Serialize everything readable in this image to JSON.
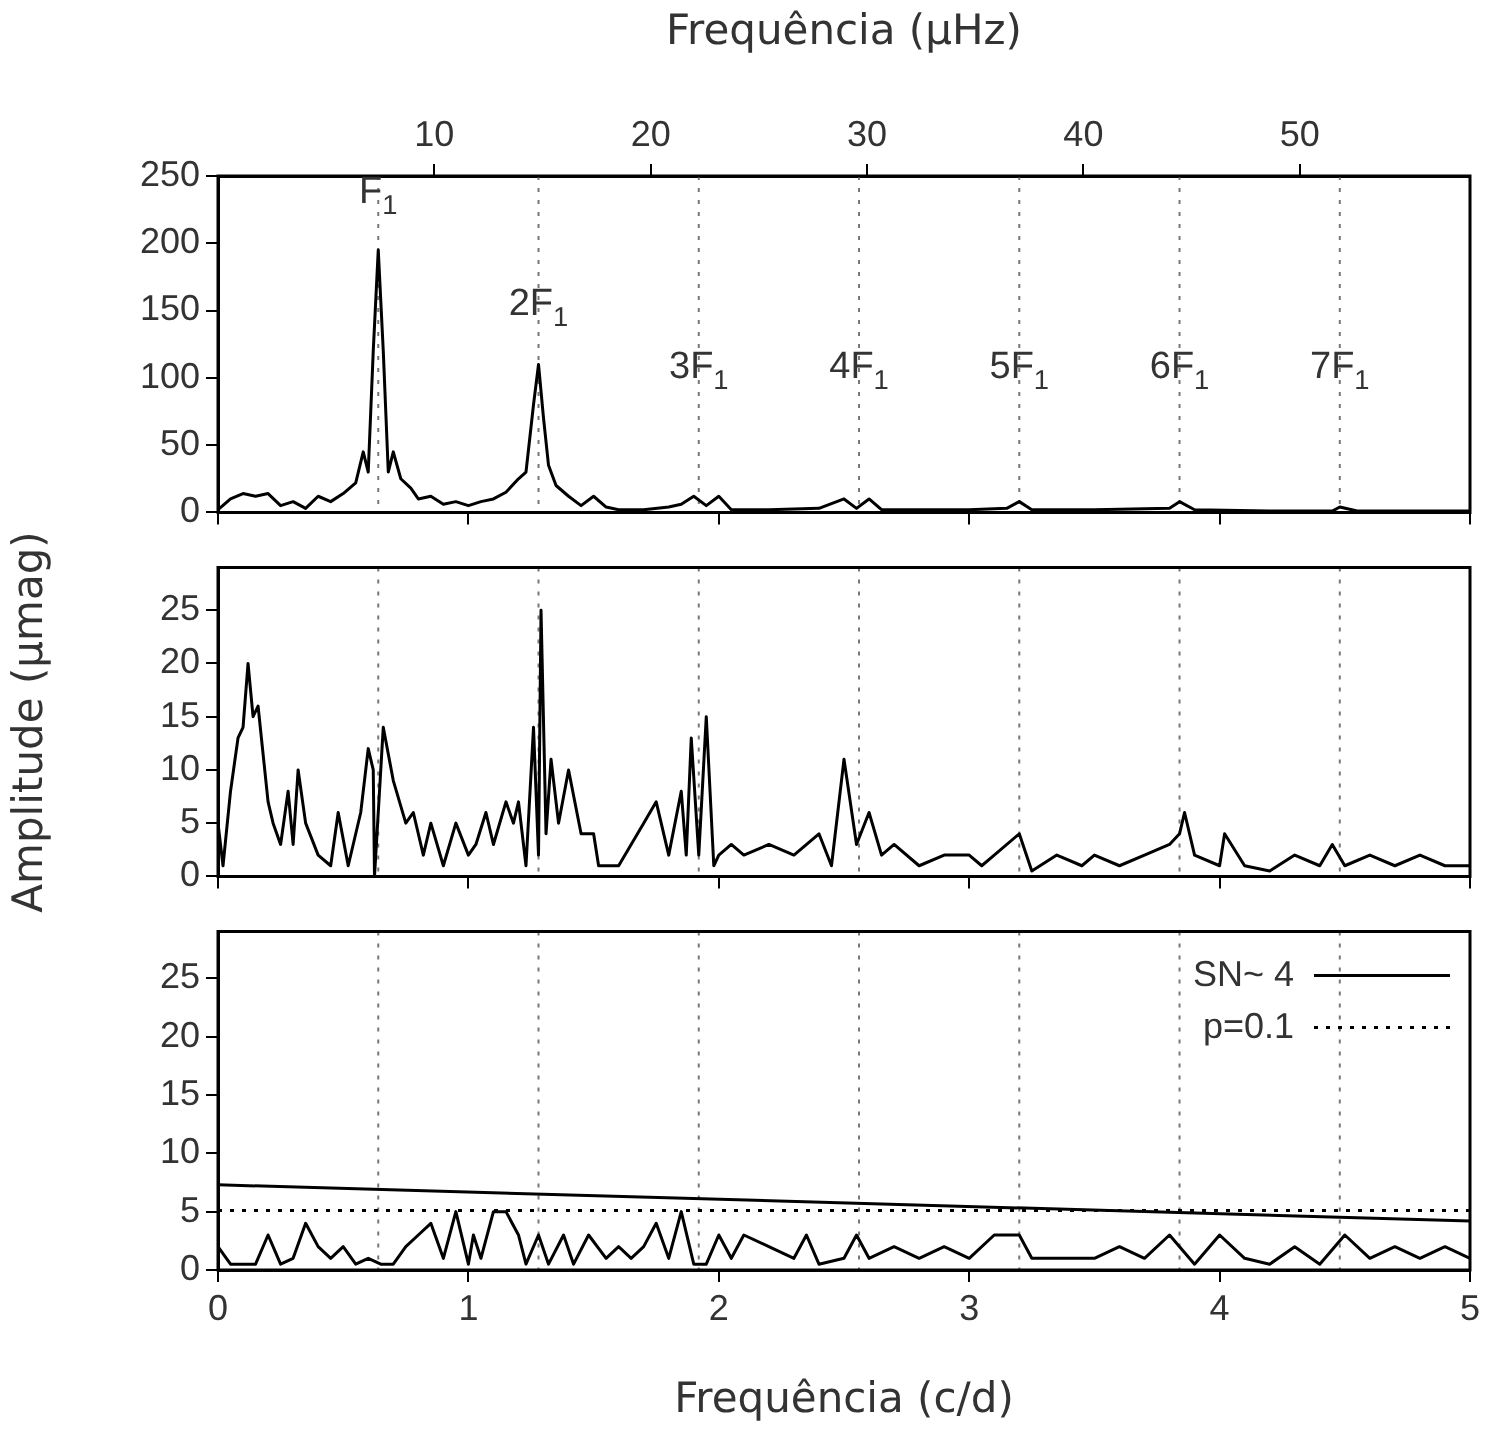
{
  "chart_data": [
    {
      "type": "line",
      "x2label": "Frequência (µHz)",
      "xlim": [
        0,
        5
      ],
      "xticks": [
        0,
        1,
        2,
        3,
        4,
        5
      ],
      "x2lim": [
        0,
        57.87
      ],
      "x2ticks": [
        10,
        20,
        30,
        40,
        50
      ],
      "ylim": [
        0,
        250
      ],
      "yticks": [
        0,
        50,
        100,
        150,
        200,
        250
      ],
      "tick_labels": "y",
      "series": [
        {
          "color": "#000000",
          "x": [
            0,
            0.05,
            0.1,
            0.15,
            0.2,
            0.25,
            0.3,
            0.35,
            0.4,
            0.45,
            0.5,
            0.55,
            0.58,
            0.6,
            0.62,
            0.64,
            0.66,
            0.68,
            0.7,
            0.73,
            0.77,
            0.8,
            0.85,
            0.9,
            0.95,
            1.0,
            1.05,
            1.1,
            1.15,
            1.2,
            1.23,
            1.26,
            1.28,
            1.3,
            1.32,
            1.35,
            1.4,
            1.45,
            1.5,
            1.55,
            1.6,
            1.7,
            1.8,
            1.85,
            1.9,
            1.95,
            2.0,
            2.05,
            2.2,
            2.4,
            2.5,
            2.55,
            2.6,
            2.65,
            2.8,
            3.0,
            3.15,
            3.2,
            3.25,
            3.5,
            3.8,
            3.84,
            3.9,
            4.2,
            4.45,
            4.48,
            4.55,
            5
          ],
          "values": [
            2,
            10,
            14,
            12,
            14,
            5,
            8,
            3,
            12,
            8,
            14,
            22,
            45,
            30,
            120,
            195,
            120,
            30,
            45,
            25,
            18,
            10,
            12,
            6,
            8,
            5,
            8,
            10,
            15,
            25,
            30,
            80,
            110,
            70,
            35,
            20,
            12,
            5,
            12,
            4,
            2,
            2,
            4,
            6,
            12,
            5,
            12,
            2,
            2,
            3,
            10,
            3,
            10,
            2,
            2,
            2,
            3,
            8,
            2,
            2,
            3,
            8,
            2,
            1,
            1,
            4,
            1,
            1
          ]
        }
      ],
      "ref_lines": [
        {
          "axis": "x",
          "value": 0.64
        },
        {
          "axis": "x",
          "value": 1.28
        },
        {
          "axis": "x",
          "value": 1.92
        },
        {
          "axis": "x",
          "value": 2.56
        },
        {
          "axis": "x",
          "value": 3.2
        },
        {
          "axis": "x",
          "value": 3.84
        },
        {
          "axis": "x",
          "value": 4.48
        }
      ],
      "annotations": [
        {
          "text": "F$_{1}$",
          "x": 0.64,
          "y": 230
        },
        {
          "text": "2F$_{1}$",
          "x": 1.28,
          "y": 147
        },
        {
          "text": "3F$_{1}$",
          "x": 1.92,
          "y": 100
        },
        {
          "text": "4F$_{1}$",
          "x": 2.56,
          "y": 100
        },
        {
          "text": "5F$_{1}$",
          "x": 3.2,
          "y": 100
        },
        {
          "text": "6F$_{1}$",
          "x": 3.84,
          "y": 100
        },
        {
          "text": "7F$_{1}$",
          "x": 4.48,
          "y": 100
        }
      ]
    },
    {
      "type": "line",
      "ylabel": "Amplitude (µmag)",
      "xlim": [
        0,
        5
      ],
      "xticks": [
        0,
        1,
        2,
        3,
        4,
        5
      ],
      "ylim": [
        0,
        29
      ],
      "yticks": [
        0,
        5,
        10,
        15,
        20,
        25
      ],
      "tick_labels": "y",
      "series": [
        {
          "color": "#000000",
          "x": [
            0,
            0.02,
            0.05,
            0.08,
            0.1,
            0.12,
            0.14,
            0.16,
            0.2,
            0.22,
            0.25,
            0.28,
            0.3,
            0.32,
            0.35,
            0.4,
            0.45,
            0.48,
            0.52,
            0.57,
            0.6,
            0.62,
            0.625,
            0.66,
            0.7,
            0.75,
            0.78,
            0.82,
            0.85,
            0.9,
            0.95,
            1.0,
            1.03,
            1.07,
            1.1,
            1.15,
            1.18,
            1.2,
            1.23,
            1.26,
            1.28,
            1.29,
            1.31,
            1.33,
            1.36,
            1.4,
            1.45,
            1.5,
            1.52,
            1.6,
            1.7,
            1.75,
            1.8,
            1.85,
            1.87,
            1.89,
            1.92,
            1.95,
            1.98,
            2.0,
            2.05,
            2.1,
            2.2,
            2.3,
            2.4,
            2.45,
            2.5,
            2.55,
            2.6,
            2.65,
            2.7,
            2.8,
            2.9,
            3.0,
            3.05,
            3.1,
            3.2,
            3.25,
            3.35,
            3.45,
            3.5,
            3.6,
            3.7,
            3.8,
            3.84,
            3.86,
            3.9,
            4.0,
            4.02,
            4.1,
            4.2,
            4.3,
            4.4,
            4.45,
            4.5,
            4.6,
            4.7,
            4.8,
            4.9,
            5
          ],
          "values": [
            5,
            1,
            8,
            13,
            14,
            20,
            15,
            16,
            7,
            5,
            3,
            8,
            3,
            10,
            5,
            2,
            1,
            6,
            1,
            6,
            12,
            10,
            0,
            14,
            9,
            5,
            6,
            2,
            5,
            1,
            5,
            2,
            3,
            6,
            3,
            7,
            5,
            7,
            1,
            14,
            2,
            25,
            4,
            11,
            5,
            10,
            4,
            4,
            1,
            1,
            5,
            7,
            2,
            8,
            2,
            13,
            2,
            15,
            1,
            2,
            3,
            2,
            3,
            2,
            4,
            1,
            11,
            3,
            6,
            2,
            3,
            1,
            2,
            2,
            1,
            2,
            4,
            0.5,
            2,
            1,
            2,
            1,
            2,
            3,
            4,
            6,
            2,
            1,
            4,
            1,
            0.5,
            2,
            1,
            3,
            1,
            2,
            1,
            2,
            1,
            1
          ]
        }
      ],
      "ref_lines": [
        {
          "axis": "x",
          "value": 0.64
        },
        {
          "axis": "x",
          "value": 1.28
        },
        {
          "axis": "x",
          "value": 1.92
        },
        {
          "axis": "x",
          "value": 2.56
        },
        {
          "axis": "x",
          "value": 3.2
        },
        {
          "axis": "x",
          "value": 3.84
        },
        {
          "axis": "x",
          "value": 4.48
        }
      ]
    },
    {
      "type": "line",
      "xlabel": "Frequência (c/d)",
      "xlim": [
        0,
        5
      ],
      "xticks": [
        0,
        1,
        2,
        3,
        4,
        5
      ],
      "ylim": [
        0,
        29
      ],
      "yticks": [
        0,
        5,
        10,
        15,
        20,
        25
      ],
      "legend": "top right",
      "series": [
        {
          "color": "#000000",
          "x": [
            0,
            0.05,
            0.15,
            0.2,
            0.25,
            0.3,
            0.35,
            0.4,
            0.45,
            0.5,
            0.55,
            0.6,
            0.65,
            0.7,
            0.75,
            0.8,
            0.85,
            0.9,
            0.95,
            1.0,
            1.02,
            1.05,
            1.1,
            1.15,
            1.2,
            1.23,
            1.28,
            1.32,
            1.38,
            1.42,
            1.48,
            1.55,
            1.6,
            1.65,
            1.7,
            1.75,
            1.8,
            1.85,
            1.9,
            1.95,
            2.0,
            2.05,
            2.1,
            2.2,
            2.3,
            2.35,
            2.4,
            2.5,
            2.55,
            2.6,
            2.7,
            2.8,
            2.9,
            3.0,
            3.1,
            3.2,
            3.25,
            3.4,
            3.5,
            3.6,
            3.7,
            3.8,
            3.9,
            4.0,
            4.1,
            4.2,
            4.3,
            4.4,
            4.5,
            4.6,
            4.7,
            4.8,
            4.9,
            5
          ],
          "values": [
            2,
            0.5,
            0.5,
            3,
            0.5,
            1,
            4,
            2,
            1,
            2,
            0.5,
            1,
            0.5,
            0.5,
            2,
            3,
            4,
            1,
            5,
            0.5,
            3,
            1,
            5,
            5,
            3,
            0.5,
            3,
            0.5,
            3,
            0.5,
            3,
            1,
            2,
            1,
            2,
            4,
            1,
            5,
            0.5,
            0.5,
            3,
            1,
            3,
            2,
            1,
            3,
            0.5,
            1,
            3,
            1,
            2,
            1,
            2,
            1,
            3,
            3,
            1,
            1,
            1,
            2,
            1,
            3,
            0.5,
            3,
            1,
            0.5,
            2,
            0.5,
            3,
            1,
            2,
            1,
            2,
            1
          ]
        },
        {
          "name": "SN~ 4",
          "color": "#000000",
          "line_style": "solid",
          "x": [
            0,
            5
          ],
          "values": [
            7.3,
            4.2
          ]
        },
        {
          "name": "p=0.1",
          "color": "#000000",
          "line_style": "dotted",
          "x": [
            0,
            5
          ],
          "values": [
            5.1,
            5.1
          ]
        }
      ],
      "ref_lines": [
        {
          "axis": "x",
          "value": 0.64
        },
        {
          "axis": "x",
          "value": 1.28
        },
        {
          "axis": "x",
          "value": 1.92
        },
        {
          "axis": "x",
          "value": 2.56
        },
        {
          "axis": "x",
          "value": 3.2
        },
        {
          "axis": "x",
          "value": 3.84
        },
        {
          "axis": "x",
          "value": 4.48
        }
      ]
    }
  ]
}
